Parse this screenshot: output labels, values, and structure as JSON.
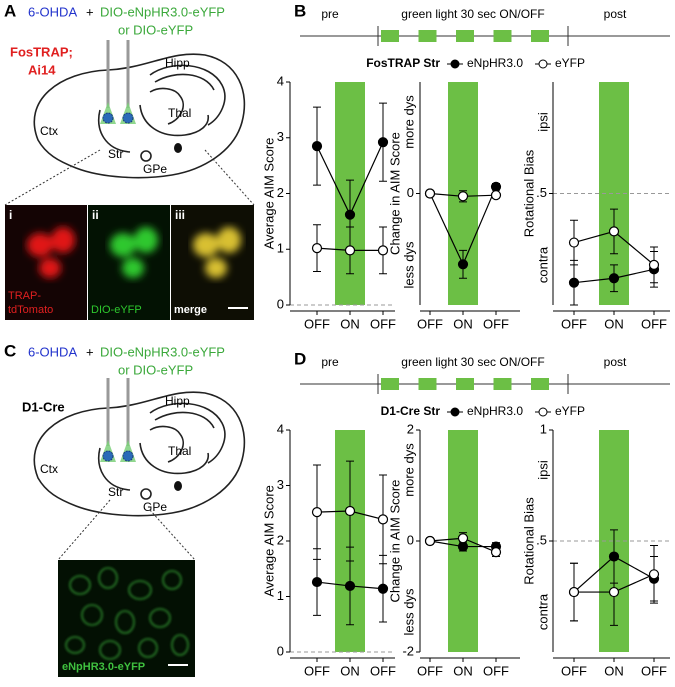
{
  "panel_labels": [
    "A",
    "B",
    "C",
    "D"
  ],
  "panel_a": {
    "virus": "6-OHDA",
    "plus": "+",
    "construct": "DIO-eNpHR3.0-eYFP",
    "alt": "or DIO-eYFP",
    "mouse": [
      "FosTRAP;",
      "Ai14"
    ],
    "regions": [
      "Ctx",
      "Hipp",
      "Thal",
      "Str",
      "GPe"
    ],
    "image_labels": [
      "i",
      "ii",
      "iii"
    ],
    "captions": [
      "TRAP-",
      "tdTomato",
      "DIO-eYFP",
      "merge"
    ]
  },
  "panel_c": {
    "virus": "6-OHDA",
    "plus": "+",
    "construct": "DIO-eNpHR3.0-eYFP",
    "alt": "or DIO-eYFP",
    "mouse": "D1-Cre",
    "regions": [
      "Ctx",
      "Hipp",
      "Thal",
      "Str",
      "GPe"
    ],
    "caption": "eNpHR3.0-eYFP"
  },
  "timelines": [
    {
      "pre": "pre",
      "light": "green light 30 sec ON/OFF",
      "post": "post",
      "color": "#6cbf45"
    },
    {
      "pre": "pre",
      "light": "green light 30 sec ON/OFF",
      "post": "post",
      "color": "#6cbf45"
    }
  ],
  "legends": [
    {
      "title": "FosTRAP Str",
      "entries": [
        {
          "name": "eNpHR3.0",
          "fill": "#000000"
        },
        {
          "name": "eYFP",
          "fill": "#ffffff"
        }
      ]
    },
    {
      "title": "D1-Cre Str",
      "entries": [
        {
          "name": "eNpHR3.0",
          "fill": "#000000"
        },
        {
          "name": "eYFP",
          "fill": "#ffffff"
        }
      ]
    }
  ],
  "chart_data": [
    {
      "type": "line",
      "ylabel": "Average AIM Score",
      "categories": [
        "OFF",
        "ON",
        "OFF"
      ],
      "highlight": 1,
      "highlight_color": "#6cbf45",
      "ylim": [
        0,
        4
      ],
      "yticks": [
        0,
        1,
        2,
        3,
        4
      ],
      "refline": 0,
      "series": [
        {
          "fill": "#000000",
          "values": [
            2.85,
            1.62,
            2.92
          ],
          "errors": [
            0.7,
            0.62,
            0.7
          ]
        },
        {
          "fill": "#ffffff",
          "values": [
            1.02,
            0.98,
            0.98
          ],
          "errors": [
            0.42,
            0.42,
            0.42
          ]
        }
      ]
    },
    {
      "type": "line",
      "ylabel": "Change in AIM Score",
      "ylabel_top": "more dys",
      "ylabel_bottom": "less dys",
      "categories": [
        "OFF",
        "ON",
        "OFF"
      ],
      "highlight": 1,
      "highlight_color": "#6cbf45",
      "ylim": [
        -2,
        2
      ],
      "yticks": [
        0
      ],
      "series": [
        {
          "fill": "#000000",
          "values": [
            0,
            -1.27,
            0.12
          ],
          "errors": [
            0.03,
            0.25,
            0.06
          ]
        },
        {
          "fill": "#ffffff",
          "values": [
            0,
            -0.05,
            -0.03
          ],
          "errors": [
            0.03,
            0.1,
            0.05
          ]
        }
      ]
    },
    {
      "type": "line",
      "ylabel": "Rotational Bias",
      "ylabel_top": "ipsi",
      "ylabel_bottom": "contra",
      "categories": [
        "OFF",
        "ON",
        "OFF"
      ],
      "highlight": 1,
      "highlight_color": "#6cbf45",
      "ylim": [
        0,
        1
      ],
      "yticks": [
        {
          "value": 0.5,
          "label": ".5"
        }
      ],
      "refline": 0.5,
      "series": [
        {
          "fill": "#000000",
          "values": [
            0.1,
            0.12,
            0.16
          ],
          "errors": [
            0.1,
            0.06,
            0.08
          ]
        },
        {
          "fill": "#ffffff",
          "values": [
            0.28,
            0.33,
            0.18
          ],
          "errors": [
            0.1,
            0.1,
            0.08
          ]
        }
      ]
    },
    {
      "type": "line",
      "ylabel": "Average AIM Score",
      "categories": [
        "OFF",
        "ON",
        "OFF"
      ],
      "highlight": 1,
      "highlight_color": "#6cbf45",
      "ylim": [
        0,
        4
      ],
      "yticks": [
        0,
        1,
        2,
        3,
        4
      ],
      "refline": 0,
      "series": [
        {
          "fill": "#000000",
          "values": [
            1.26,
            1.19,
            1.14
          ],
          "errors": [
            0.6,
            0.7,
            0.6
          ]
        },
        {
          "fill": "#ffffff",
          "values": [
            2.52,
            2.54,
            2.39
          ],
          "errors": [
            0.85,
            0.9,
            0.8
          ]
        }
      ]
    },
    {
      "type": "line",
      "ylabel": "Change in AIM Score",
      "ylabel_top": "more dys",
      "ylabel_bottom": "less dys",
      "categories": [
        "OFF",
        "ON",
        "OFF"
      ],
      "highlight": 1,
      "highlight_color": "#6cbf45",
      "ylim": [
        -2,
        2
      ],
      "yticks": [
        2,
        0,
        -2
      ],
      "series": [
        {
          "fill": "#000000",
          "values": [
            0,
            -0.1,
            -0.1
          ],
          "errors": [
            0.03,
            0.08,
            0.07
          ]
        },
        {
          "fill": "#ffffff",
          "values": [
            0,
            0.05,
            -0.2
          ],
          "errors": [
            0.03,
            0.1,
            0.08
          ]
        }
      ]
    },
    {
      "type": "line",
      "ylabel": "Rotational Bias",
      "ylabel_top": "ipsi",
      "ylabel_bottom": "contra",
      "categories": [
        "OFF",
        "ON",
        "OFF"
      ],
      "highlight": 1,
      "highlight_color": "#6cbf45",
      "ylim": [
        0,
        1
      ],
      "yticks": [
        1,
        {
          "value": 0.5,
          "label": ".5"
        }
      ],
      "refline": 0.5,
      "series": [
        {
          "fill": "#000000",
          "values": [
            0.27,
            0.43,
            0.33
          ],
          "errors": [
            0.13,
            0.12,
            0.1
          ]
        },
        {
          "fill": "#ffffff",
          "values": [
            0.27,
            0.27,
            0.35
          ],
          "errors": [
            0.13,
            0.15,
            0.13
          ]
        }
      ]
    }
  ]
}
